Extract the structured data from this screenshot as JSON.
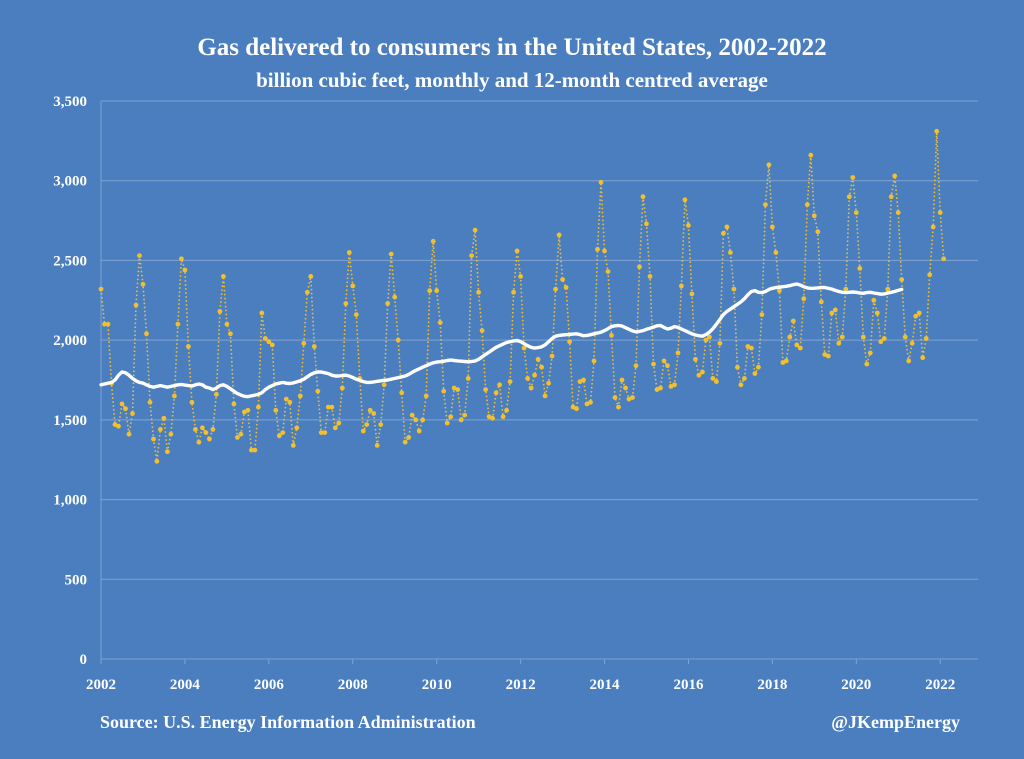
{
  "chart_data": {
    "type": "line",
    "title": "Gas delivered to consumers in the United States, 2002-2022",
    "subtitle": "billion cubic feet, monthly and 12-month centred average",
    "source": "Source: U.S. Energy Information Administration",
    "credit": "@JKempEnergy",
    "xlim": [
      2002,
      2022.9
    ],
    "ylim": [
      0,
      3500
    ],
    "x_ticks": [
      2002,
      2004,
      2006,
      2008,
      2010,
      2012,
      2014,
      2016,
      2018,
      2020,
      2022
    ],
    "y_ticks": [
      0,
      500,
      1000,
      1500,
      2000,
      2500,
      3000,
      3500
    ],
    "y_tick_labels": [
      "0",
      "500",
      "1,000",
      "1,500",
      "2,000",
      "2,500",
      "3,000",
      "3,500"
    ],
    "grid": true,
    "colors": {
      "background": "#4a7ebf",
      "monthly": "#f2c02e",
      "average": "#ffffff",
      "grid": "#7fa3d4"
    },
    "series": [
      {
        "name": "Monthly",
        "style": "dotted-with-markers",
        "start": 2002.0,
        "step": 0.08333,
        "values": [
          2320,
          2100,
          2100,
          1730,
          1470,
          1460,
          1600,
          1570,
          1410,
          1540,
          2220,
          2530,
          2350,
          2040,
          1610,
          1380,
          1240,
          1440,
          1510,
          1300,
          1410,
          1650,
          2100,
          2510,
          2440,
          1960,
          1610,
          1440,
          1360,
          1450,
          1420,
          1380,
          1440,
          1660,
          2180,
          2400,
          2100,
          2040,
          1600,
          1390,
          1410,
          1550,
          1560,
          1310,
          1310,
          1580,
          2170,
          2010,
          1990,
          1970,
          1560,
          1400,
          1420,
          1630,
          1610,
          1340,
          1450,
          1650,
          1980,
          2300,
          2400,
          1960,
          1680,
          1420,
          1420,
          1580,
          1580,
          1450,
          1480,
          1700,
          2230,
          2550,
          2340,
          2160,
          1760,
          1430,
          1470,
          1560,
          1540,
          1340,
          1470,
          1720,
          2230,
          2540,
          2270,
          2000,
          1670,
          1360,
          1390,
          1530,
          1500,
          1430,
          1500,
          1650,
          2310,
          2620,
          2310,
          2110,
          1680,
          1480,
          1520,
          1700,
          1690,
          1500,
          1530,
          1760,
          2530,
          2690,
          2300,
          2060,
          1690,
          1520,
          1510,
          1670,
          1720,
          1520,
          1560,
          1740,
          2300,
          2560,
          2400,
          1950,
          1760,
          1700,
          1780,
          1880,
          1830,
          1650,
          1730,
          1900,
          2320,
          2660,
          2380,
          2330,
          1990,
          1580,
          1570,
          1740,
          1750,
          1600,
          1610,
          1870,
          2570,
          2990,
          2560,
          2430,
          2030,
          1640,
          1580,
          1750,
          1700,
          1630,
          1640,
          1840,
          2460,
          2900,
          2730,
          2400,
          1850,
          1690,
          1700,
          1870,
          1840,
          1710,
          1720,
          1920,
          2340,
          2880,
          2720,
          2290,
          1880,
          1780,
          1800,
          2000,
          2020,
          1760,
          1740,
          1980,
          2670,
          2710,
          2550,
          2320,
          1830,
          1720,
          1760,
          1960,
          1950,
          1790,
          1830,
          2160,
          2850,
          3100,
          2710,
          2550,
          2310,
          1860,
          1870,
          2020,
          2120,
          1970,
          1950,
          2260,
          2850,
          3160,
          2780,
          2680,
          2240,
          1910,
          1900,
          2170,
          2190,
          1980,
          2020,
          2320,
          2900,
          3020,
          2800,
          2450,
          2020,
          1850,
          1920,
          2250,
          2170,
          1990,
          2010,
          2320,
          2900,
          3030,
          2800,
          2380,
          2020,
          1870,
          1980,
          2150,
          2170,
          1890,
          2010,
          2410,
          2710,
          3310,
          2800,
          2510
        ]
      },
      {
        "name": "12-month centred average",
        "style": "solid-line",
        "start": 2002.0,
        "step": 0.08333,
        "values": [
          1720,
          1725,
          1730,
          1735,
          1750,
          1780,
          1800,
          1795,
          1780,
          1760,
          1745,
          1735,
          1730,
          1720,
          1710,
          1705,
          1710,
          1715,
          1710,
          1705,
          1710,
          1715,
          1720,
          1722,
          1718,
          1715,
          1712,
          1720,
          1725,
          1720,
          1705,
          1700,
          1690,
          1700,
          1715,
          1720,
          1710,
          1695,
          1680,
          1665,
          1655,
          1648,
          1645,
          1650,
          1655,
          1660,
          1670,
          1690,
          1705,
          1715,
          1725,
          1730,
          1735,
          1730,
          1728,
          1732,
          1738,
          1745,
          1755,
          1770,
          1785,
          1795,
          1800,
          1800,
          1795,
          1790,
          1780,
          1775,
          1775,
          1778,
          1780,
          1775,
          1765,
          1755,
          1748,
          1740,
          1735,
          1735,
          1738,
          1742,
          1745,
          1748,
          1750,
          1755,
          1760,
          1765,
          1770,
          1775,
          1785,
          1798,
          1810,
          1820,
          1830,
          1840,
          1850,
          1858,
          1862,
          1865,
          1868,
          1872,
          1875,
          1872,
          1870,
          1868,
          1866,
          1864,
          1866,
          1870,
          1880,
          1895,
          1910,
          1925,
          1940,
          1955,
          1965,
          1975,
          1985,
          1990,
          1995,
          1998,
          1990,
          1978,
          1965,
          1955,
          1950,
          1953,
          1958,
          1970,
          1990,
          2010,
          2025,
          2030,
          2032,
          2034,
          2036,
          2038,
          2040,
          2035,
          2028,
          2030,
          2034,
          2040,
          2045,
          2050,
          2060,
          2072,
          2085,
          2090,
          2092,
          2088,
          2078,
          2068,
          2058,
          2052,
          2055,
          2060,
          2068,
          2075,
          2082,
          2090,
          2092,
          2080,
          2070,
          2075,
          2085,
          2080,
          2070,
          2060,
          2050,
          2040,
          2032,
          2028,
          2025,
          2035,
          2050,
          2072,
          2100,
          2130,
          2160,
          2180,
          2195,
          2210,
          2225,
          2240,
          2260,
          2285,
          2305,
          2310,
          2300,
          2298,
          2305,
          2318,
          2325,
          2330,
          2332,
          2335,
          2338,
          2342,
          2348,
          2352,
          2345,
          2335,
          2328,
          2325,
          2326,
          2328,
          2330,
          2330,
          2325,
          2320,
          2312,
          2305,
          2300,
          2298,
          2300,
          2302,
          2300,
          2296,
          2294,
          2298,
          2300,
          2296,
          2292,
          2288,
          2290,
          2296,
          2300,
          2305,
          2312,
          2318
        ]
      }
    ]
  }
}
